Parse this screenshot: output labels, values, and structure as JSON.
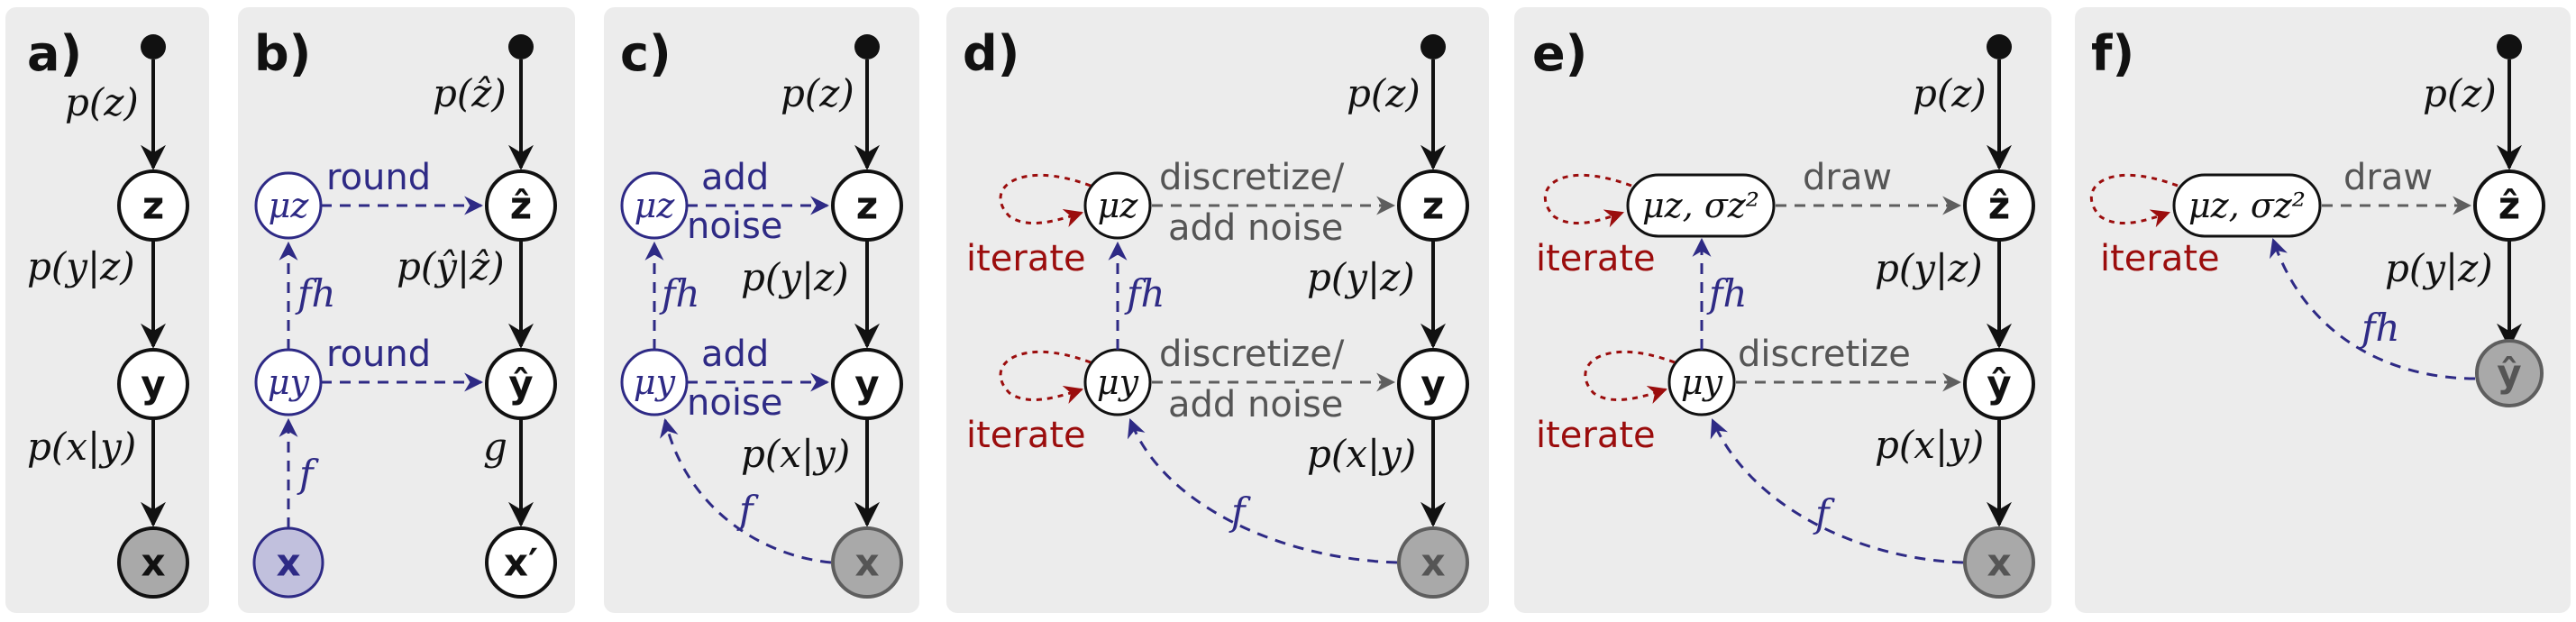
{
  "colors": {
    "panel_bg": "#ececec",
    "black": "#111111",
    "blue": "#2e2a85",
    "blue_fill": "#c1c0dd",
    "red": "#9b0d0d",
    "gray": "#5e5e5e",
    "observed_fill": "#a9a9a9"
  },
  "panels": {
    "a": {
      "label": "a)",
      "p_z": "p(z)",
      "p_y_given_z": "p(y|z)",
      "p_x_given_y": "p(x|y)",
      "z": "z",
      "y": "y",
      "x": "x"
    },
    "b": {
      "label": "b)",
      "p_zhat": "p(ẑ)",
      "p_yhat_given_zhat": "p(ŷ|ẑ)",
      "g": "g",
      "mu_z": "μz",
      "mu_y": "μy",
      "round_top": "round",
      "round_bottom": "round",
      "f_h": "fh",
      "f": "f",
      "zhat": "ẑ",
      "yhat": "ŷ",
      "x_prime": "x′",
      "x": "x"
    },
    "c": {
      "label": "c)",
      "p_z": "p(z)",
      "p_y_given_z": "p(y|z)",
      "p_x_given_y": "p(x|y)",
      "mu_z": "μz",
      "mu_y": "μy",
      "add_top": "add",
      "noise_top": "noise",
      "add_bottom": "add",
      "noise_bottom": "noise",
      "f_h": "fh",
      "f": "f",
      "z": "z",
      "y": "y",
      "x": "x"
    },
    "d": {
      "label": "d)",
      "p_z": "p(z)",
      "p_y_given_z": "p(y|z)",
      "p_x_given_y": "p(x|y)",
      "mu_z": "μz",
      "mu_y": "μy",
      "iterate_top": "iterate",
      "iterate_bottom": "iterate",
      "disc_top_1": "discretize/",
      "disc_top_2": "add noise",
      "disc_bottom_1": "discretize/",
      "disc_bottom_2": "add noise",
      "f_h": "fh",
      "f": "f",
      "z": "z",
      "y": "y",
      "x": "x"
    },
    "e": {
      "label": "e)",
      "p_z": "p(z)",
      "p_y_given_z": "p(y|z)",
      "p_x_given_y": "p(x|y)",
      "mu_sigma": "μz, σz²",
      "mu_y": "μy",
      "iterate_top": "iterate",
      "iterate_bottom": "iterate",
      "draw": "draw",
      "discretize": "discretize",
      "f_h": "fh",
      "f": "f",
      "zhat": "ẑ",
      "yhat": "ŷ",
      "x": "x"
    },
    "f": {
      "label": "f)",
      "p_z": "p(z)",
      "p_y_given_z": "p(y|z)",
      "mu_sigma": "μz, σz²",
      "iterate": "iterate",
      "draw": "draw",
      "f_h": "fh",
      "zhat": "ẑ",
      "yhat": "ŷ"
    }
  }
}
